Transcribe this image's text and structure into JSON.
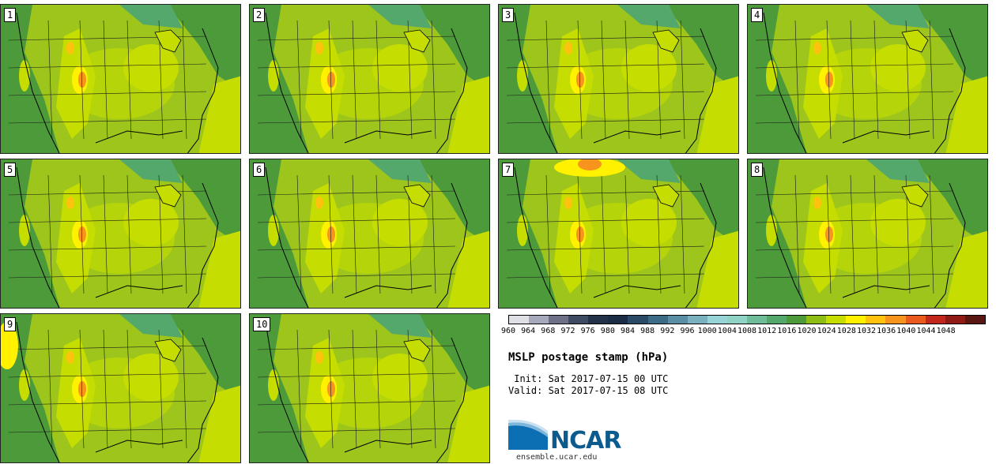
{
  "panels": [
    {
      "label": "1"
    },
    {
      "label": "2"
    },
    {
      "label": "3"
    },
    {
      "label": "4"
    },
    {
      "label": "5"
    },
    {
      "label": "6"
    },
    {
      "label": "7"
    },
    {
      "label": "8"
    },
    {
      "label": "9"
    },
    {
      "label": "10"
    }
  ],
  "colorbar": {
    "ticks": [
      "960",
      "964",
      "968",
      "972",
      "976",
      "980",
      "984",
      "988",
      "992",
      "996",
      "1000",
      "1004",
      "1008",
      "1012",
      "1016",
      "1020",
      "1024",
      "1028",
      "1032",
      "1036",
      "1040",
      "1044",
      "1048"
    ],
    "colors": [
      "#dfe0e6",
      "#a6a8bb",
      "#6e7087",
      "#3f4a63",
      "#233149",
      "#1b2c45",
      "#2a4a66",
      "#3d6a86",
      "#5a8ea4",
      "#79b1bf",
      "#96d4d8",
      "#8fd3c4",
      "#6ebd98",
      "#55a86b",
      "#4d9a3a",
      "#8ebd14",
      "#c5dd00",
      "#fff100",
      "#ffc20e",
      "#f7941d",
      "#e85a1e",
      "#c1271c",
      "#8e1b16",
      "#5a1612"
    ]
  },
  "title": "MSLP postage stamp (hPa)",
  "init_line": " Init: Sat 2017-07-15 00 UTC",
  "valid_line": "Valid: Sat 2017-07-15 08 UTC",
  "logo_text": "NCAR",
  "url": "ensemble.ucar.edu"
}
